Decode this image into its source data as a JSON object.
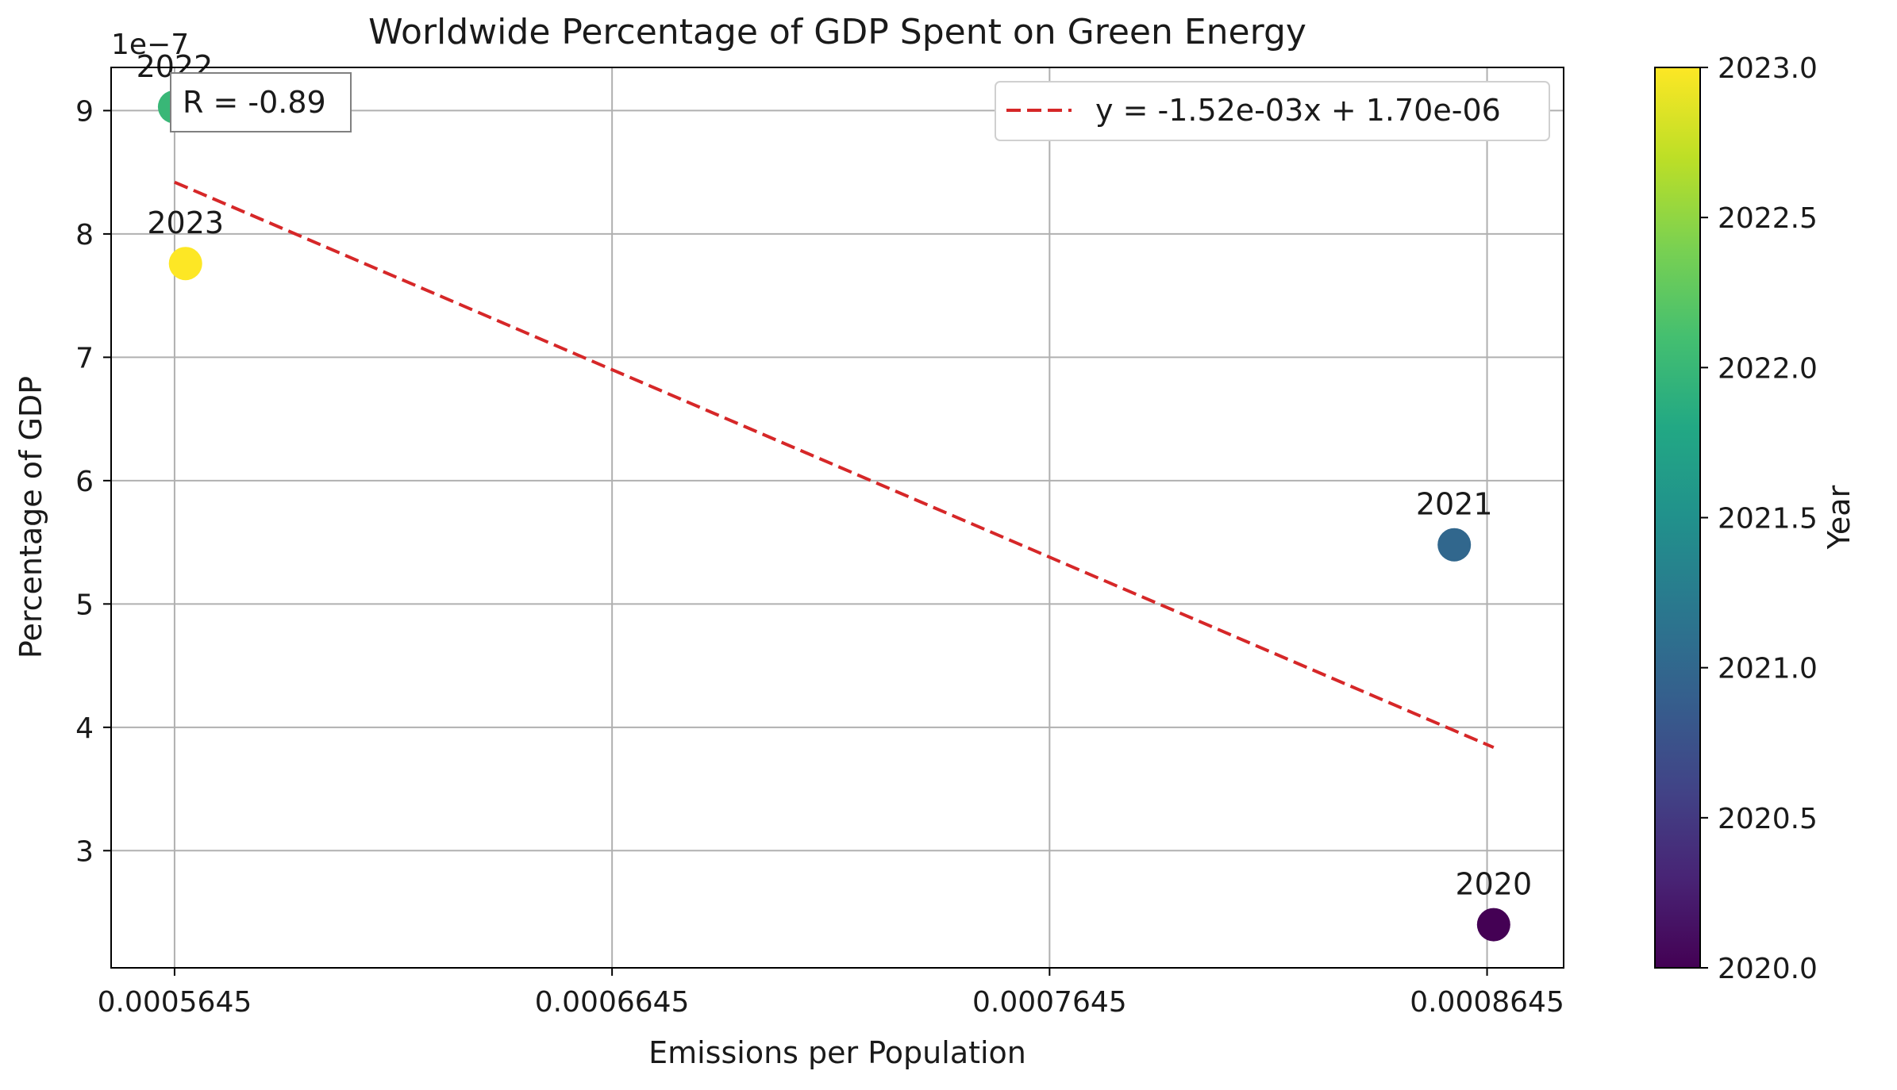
{
  "chart_data": {
    "type": "scatter",
    "title": "Worldwide Percentage of GDP Spent on Green Energy",
    "xlabel": "Emissions per Population",
    "ylabel": "Percentage of GDP",
    "y_scale_label": "1e−7",
    "xlim": [
      0.00055,
      0.000882
    ],
    "ylim": [
      2.05e-07,
      9.35e-07
    ],
    "x_ticks": [
      0.0005645,
      0.0006645,
      0.0007645,
      0.0008645
    ],
    "x_tick_labels": [
      "0.0005645",
      "0.0006645",
      "0.0007645",
      "0.0008645"
    ],
    "y_ticks": [
      3e-07,
      4e-07,
      5e-07,
      6e-07,
      7e-07,
      8e-07,
      9e-07
    ],
    "y_tick_labels": [
      "3",
      "4",
      "5",
      "6",
      "7",
      "8",
      "9"
    ],
    "grid": true,
    "points": [
      {
        "label": "2020",
        "year": 2020,
        "x": 0.000866,
        "y": 2.4e-07
      },
      {
        "label": "2021",
        "year": 2021,
        "x": 0.000857,
        "y": 5.48e-07
      },
      {
        "label": "2022",
        "year": 2022,
        "x": 0.0005645,
        "y": 9.03e-07
      },
      {
        "label": "2023",
        "year": 2023,
        "x": 0.000567,
        "y": 7.76e-07
      }
    ],
    "trendline": {
      "label": "y = -1.52e-03x + 1.70e-06",
      "slope": -0.00152,
      "intercept": 1.7e-06,
      "x_range": [
        0.0005645,
        0.000866
      ],
      "color": "#d62728",
      "style": "dashed"
    },
    "legend_placement": "top-right",
    "annotation": {
      "text": "R = -0.89",
      "placement": "top-left"
    },
    "colorbar": {
      "label": "Year",
      "colormap": "viridis",
      "min": 2020.0,
      "max": 2023.0,
      "ticks": [
        2020.0,
        2020.5,
        2021.0,
        2021.5,
        2022.0,
        2022.5,
        2023.0
      ],
      "tick_labels": [
        "2020.0",
        "2020.5",
        "2021.0",
        "2021.5",
        "2022.0",
        "2022.5",
        "2023.0"
      ]
    }
  }
}
